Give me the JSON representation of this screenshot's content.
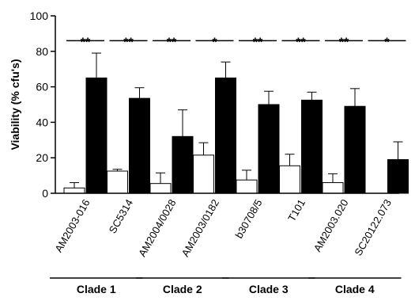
{
  "chart_data": {
    "type": "bar",
    "ylabel": "Viability (% cfu's)",
    "ylim": [
      0,
      100
    ],
    "yticks": [
      0,
      20,
      40,
      60,
      80,
      100
    ],
    "categories": [
      "AM2003-016",
      "SC5314",
      "AM2004/0028",
      "AM2003/0182",
      "b30708/5",
      "T101",
      "AM2003.020",
      "SC20122.073"
    ],
    "series": [
      {
        "color": "#ffffff",
        "values": [
          3,
          12.5,
          5.5,
          21.5,
          7.5,
          15.5,
          6,
          0
        ],
        "errors": [
          3,
          1,
          6,
          7,
          5.5,
          6.5,
          5,
          0
        ]
      },
      {
        "color": "#000000",
        "values": [
          65,
          53.5,
          32,
          65,
          50,
          52.5,
          49,
          19
        ],
        "errors": [
          14,
          6,
          15,
          9,
          7.5,
          4.5,
          10,
          10
        ]
      }
    ],
    "significance": [
      "**",
      "**",
      "**",
      "*",
      "**",
      "**",
      "**",
      "*"
    ],
    "groups": [
      {
        "label": "Clade 1",
        "span": [
          0,
          1
        ]
      },
      {
        "label": "Clade 2",
        "span": [
          2,
          3
        ]
      },
      {
        "label": "Clade 3",
        "span": [
          4,
          5
        ]
      },
      {
        "label": "Clade 4",
        "span": [
          6,
          7
        ]
      }
    ]
  }
}
